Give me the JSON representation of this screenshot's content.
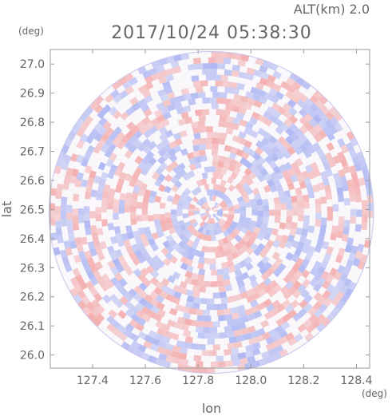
{
  "header": {
    "altitude_label": "ALT(km) 2.0",
    "timestamp": "2017/10/24 05:38:30"
  },
  "chart_data": {
    "type": "heatmap",
    "title": "2017/10/24 05:38:30",
    "subtitle": "ALT(km) 2.0",
    "xlabel": "lon",
    "ylabel": "lat",
    "xunit": "(deg)",
    "yunit": "(deg)",
    "xlim": [
      127.24,
      128.45
    ],
    "ylim": [
      25.955,
      27.05
    ],
    "xticks": [
      127.4,
      127.6,
      127.8,
      128.0,
      128.2,
      128.4
    ],
    "xtick_labels": [
      "127.4",
      "127.6",
      "127.8",
      "128.0",
      "128.2",
      "128.4"
    ],
    "yticks": [
      26.0,
      26.1,
      26.2,
      26.3,
      26.4,
      26.5,
      26.6,
      26.7,
      26.8,
      26.9,
      27.0
    ],
    "ytick_labels": [
      "26.0",
      "26.1",
      "26.2",
      "26.3",
      "26.4",
      "26.5",
      "26.6",
      "26.7",
      "26.8",
      "26.9",
      "27.0"
    ],
    "grid": false,
    "domain": {
      "shape": "circle",
      "center_lon": 127.85,
      "center_lat": 26.49,
      "radius_lon": 0.615,
      "radius_lat": 0.553
    },
    "colors": {
      "positive": "#f4aaaa",
      "negative": "#aab4f2",
      "neutral": "#ffffff",
      "frame": "#999999",
      "text": "#666666"
    }
  }
}
